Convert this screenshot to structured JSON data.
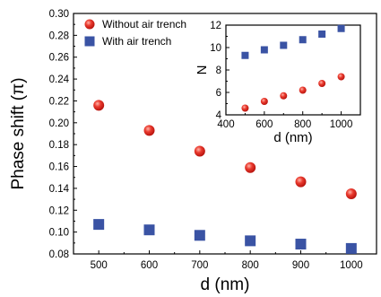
{
  "chart_data": [
    {
      "type": "scatter",
      "title": "",
      "xlabel": "d (nm)",
      "ylabel": "Phase shift (π)",
      "xlim": [
        450,
        1050
      ],
      "ylim": [
        0.08,
        0.3
      ],
      "xticks": [
        500,
        600,
        700,
        800,
        900,
        1000
      ],
      "yticks": [
        0.08,
        0.1,
        0.12,
        0.14,
        0.16,
        0.18,
        0.2,
        0.22,
        0.24,
        0.26,
        0.28,
        0.3
      ],
      "x": [
        500,
        600,
        700,
        800,
        900,
        1000
      ],
      "series": [
        {
          "name": "Without air trench",
          "marker": "circle",
          "color": "#e8302a",
          "values": [
            0.216,
            0.193,
            0.174,
            0.159,
            0.146,
            0.135
          ]
        },
        {
          "name": "With air trench",
          "marker": "square",
          "color": "#3a53a4",
          "values": [
            0.107,
            0.102,
            0.097,
            0.092,
            0.089,
            0.085
          ]
        }
      ],
      "legend_position": "top-left",
      "grid": false
    },
    {
      "type": "scatter",
      "title": "",
      "xlabel": "d (nm)",
      "ylabel": "N",
      "xlim": [
        400,
        1100
      ],
      "ylim": [
        4,
        12
      ],
      "xticks": [
        400,
        600,
        800,
        1000
      ],
      "yticks": [
        4,
        6,
        8,
        10,
        12
      ],
      "x": [
        500,
        600,
        700,
        800,
        900,
        1000
      ],
      "series": [
        {
          "marker": "circle",
          "color": "#e8302a",
          "values": [
            4.6,
            5.2,
            5.7,
            6.2,
            6.8,
            7.4
          ]
        },
        {
          "marker": "square",
          "color": "#3a53a4",
          "values": [
            9.3,
            9.8,
            10.2,
            10.7,
            11.2,
            11.7
          ]
        }
      ],
      "grid": false
    }
  ]
}
